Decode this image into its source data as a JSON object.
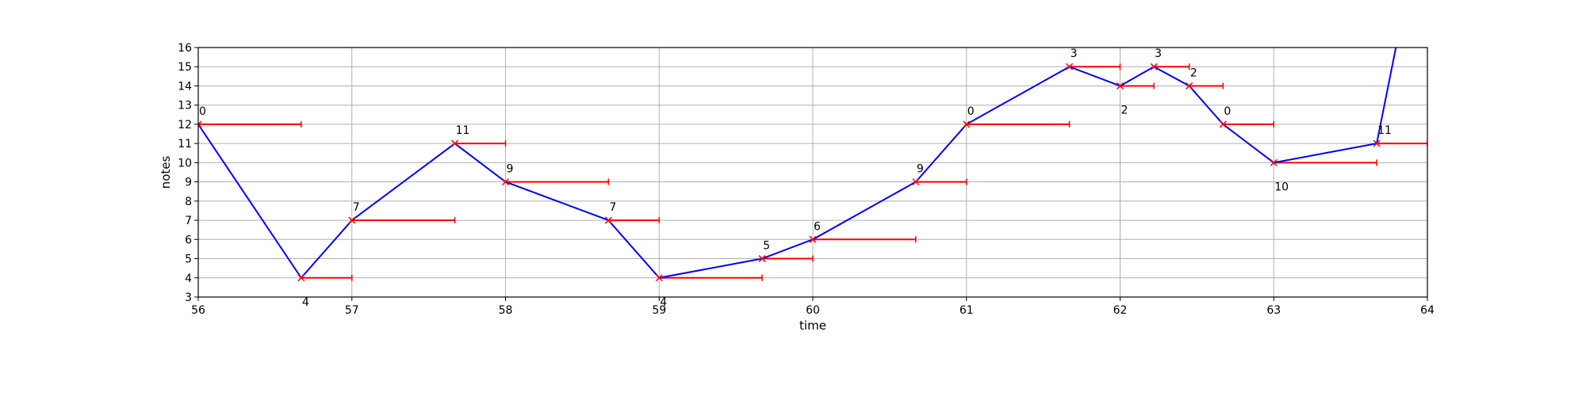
{
  "chart_data": {
    "type": "line",
    "xlabel": "time",
    "ylabel": "notes",
    "xlim": [
      56,
      64
    ],
    "ylim": [
      3,
      16
    ],
    "xticks": [
      56,
      57,
      58,
      59,
      60,
      61,
      62,
      63,
      64
    ],
    "yticks": [
      3,
      4,
      5,
      6,
      7,
      8,
      9,
      10,
      11,
      12,
      13,
      14,
      15,
      16
    ],
    "grid": true,
    "colors": {
      "line": "#0000ff",
      "duration": "#ff0000",
      "marker": "#ff0000",
      "grid": "#b0b0b0",
      "axes": "#000000"
    },
    "points": [
      {
        "time": 56.0,
        "note": 12,
        "duration_end": 56.67,
        "label": "0",
        "label_position": "above"
      },
      {
        "time": 56.67,
        "note": 4,
        "duration_end": 57.0,
        "label": "4",
        "label_position": "below"
      },
      {
        "time": 57.0,
        "note": 7,
        "duration_end": 57.67,
        "label": "7",
        "label_position": "above"
      },
      {
        "time": 57.67,
        "note": 11,
        "duration_end": 58.0,
        "label": "11",
        "label_position": "above"
      },
      {
        "time": 58.0,
        "note": 9,
        "duration_end": 58.67,
        "label": "9",
        "label_position": "above"
      },
      {
        "time": 58.67,
        "note": 7,
        "duration_end": 59.0,
        "label": "7",
        "label_position": "above"
      },
      {
        "time": 59.0,
        "note": 4,
        "duration_end": 59.67,
        "label": "4",
        "label_position": "below"
      },
      {
        "time": 59.67,
        "note": 5,
        "duration_end": 60.0,
        "label": "5",
        "label_position": "above"
      },
      {
        "time": 60.0,
        "note": 6,
        "duration_end": 60.67,
        "label": "6",
        "label_position": "above"
      },
      {
        "time": 60.67,
        "note": 9,
        "duration_end": 61.0,
        "label": "9",
        "label_position": "above"
      },
      {
        "time": 61.0,
        "note": 12,
        "duration_end": 61.67,
        "label": "0",
        "label_position": "above"
      },
      {
        "time": 61.67,
        "note": 15,
        "duration_end": 62.0,
        "label": "3",
        "label_position": "above"
      },
      {
        "time": 62.0,
        "note": 14,
        "duration_end": 62.22,
        "label": "2",
        "label_position": "below"
      },
      {
        "time": 62.22,
        "note": 15,
        "duration_end": 62.45,
        "label": "3",
        "label_position": "above"
      },
      {
        "time": 62.45,
        "note": 14,
        "duration_end": 62.67,
        "label": "2",
        "label_position": "above"
      },
      {
        "time": 62.67,
        "note": 12,
        "duration_end": 63.0,
        "label": "0",
        "label_position": "above"
      },
      {
        "time": 63.0,
        "note": 10,
        "duration_end": 63.67,
        "label": "10",
        "label_position": "below"
      },
      {
        "time": 63.67,
        "note": 11,
        "duration_end": 64.0,
        "label": "11",
        "label_position": "above"
      }
    ],
    "line_continuation": {
      "time": 63.8,
      "note": 16.2
    }
  }
}
